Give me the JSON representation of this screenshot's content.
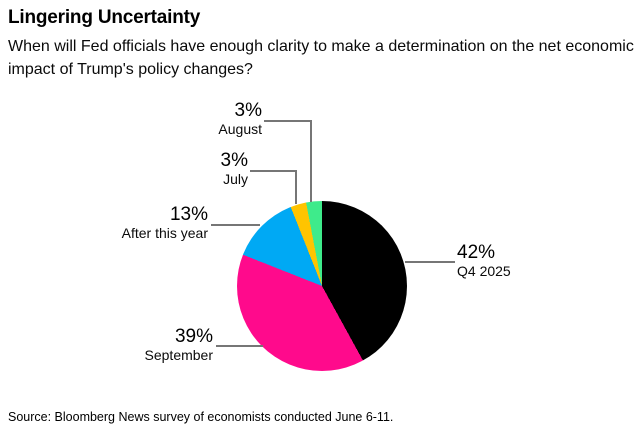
{
  "header": {
    "title": "Lingering Uncertainty",
    "subtitle": "When will Fed officials have enough clarity to make a determination on the net economic impact of Trump's policy changes?"
  },
  "chart_data": {
    "type": "pie",
    "title": "Lingering Uncertainty",
    "question": "When will Fed officials have enough clarity to make a determination on the net economic impact of Trump's policy changes?",
    "unit": "percent",
    "total": 100,
    "start_angle_deg": 0,
    "direction": "clockwise",
    "slices": [
      {
        "label": "Q4 2025",
        "value": 42,
        "pct": "42%",
        "color": "#000000"
      },
      {
        "label": "September",
        "value": 39,
        "pct": "39%",
        "color": "#FF0A8C"
      },
      {
        "label": "After this year",
        "value": 13,
        "pct": "13%",
        "color": "#00A9F4"
      },
      {
        "label": "July",
        "value": 3,
        "pct": "3%",
        "color": "#FFC400"
      },
      {
        "label": "August",
        "value": 3,
        "pct": "3%",
        "color": "#3EEB8B"
      }
    ],
    "leader_line_color": "#767676"
  },
  "footer": {
    "source": "Source: Bloomberg News survey of economists conducted June 6-11."
  }
}
